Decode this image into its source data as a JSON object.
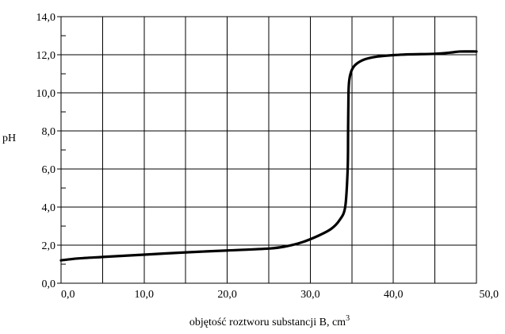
{
  "chart_data": {
    "type": "line",
    "title": "",
    "xlabel": "objętość roztworu substancji B, cm",
    "xlabel_superscript": "3",
    "ylabel": "pH",
    "xlim": [
      0,
      50
    ],
    "ylim": [
      0,
      14
    ],
    "x_ticks": [
      0,
      10,
      20,
      30,
      40,
      50
    ],
    "x_tick_labels": [
      "0,0",
      "10,0",
      "20,0",
      "30,0",
      "40,0",
      "50,0"
    ],
    "y_ticks": [
      0,
      2,
      4,
      6,
      8,
      10,
      12,
      14
    ],
    "y_tick_labels": [
      "0,0",
      "2,0",
      "4,0",
      "6,0",
      "8,0",
      "10,0",
      "12,0",
      "14,0"
    ],
    "grid": true,
    "x_grid_step": 5,
    "y_grid_step": 2,
    "y_minor_tick_step": 1,
    "series": [
      {
        "x": [
          0,
          2,
          5,
          10,
          15,
          20,
          25,
          27,
          29,
          31,
          32.5,
          33.5,
          34.2,
          34.5,
          34.55,
          34.6,
          34.7,
          35,
          35.5,
          36.5,
          38,
          40,
          42,
          45,
          47,
          48,
          50
        ],
        "y": [
          1.2,
          1.3,
          1.38,
          1.5,
          1.62,
          1.72,
          1.82,
          1.93,
          2.15,
          2.5,
          2.85,
          3.3,
          4.0,
          6.0,
          8.0,
          10.0,
          10.7,
          11.2,
          11.5,
          11.75,
          11.9,
          11.98,
          12.02,
          12.05,
          12.12,
          12.17,
          12.17
        ]
      }
    ]
  }
}
